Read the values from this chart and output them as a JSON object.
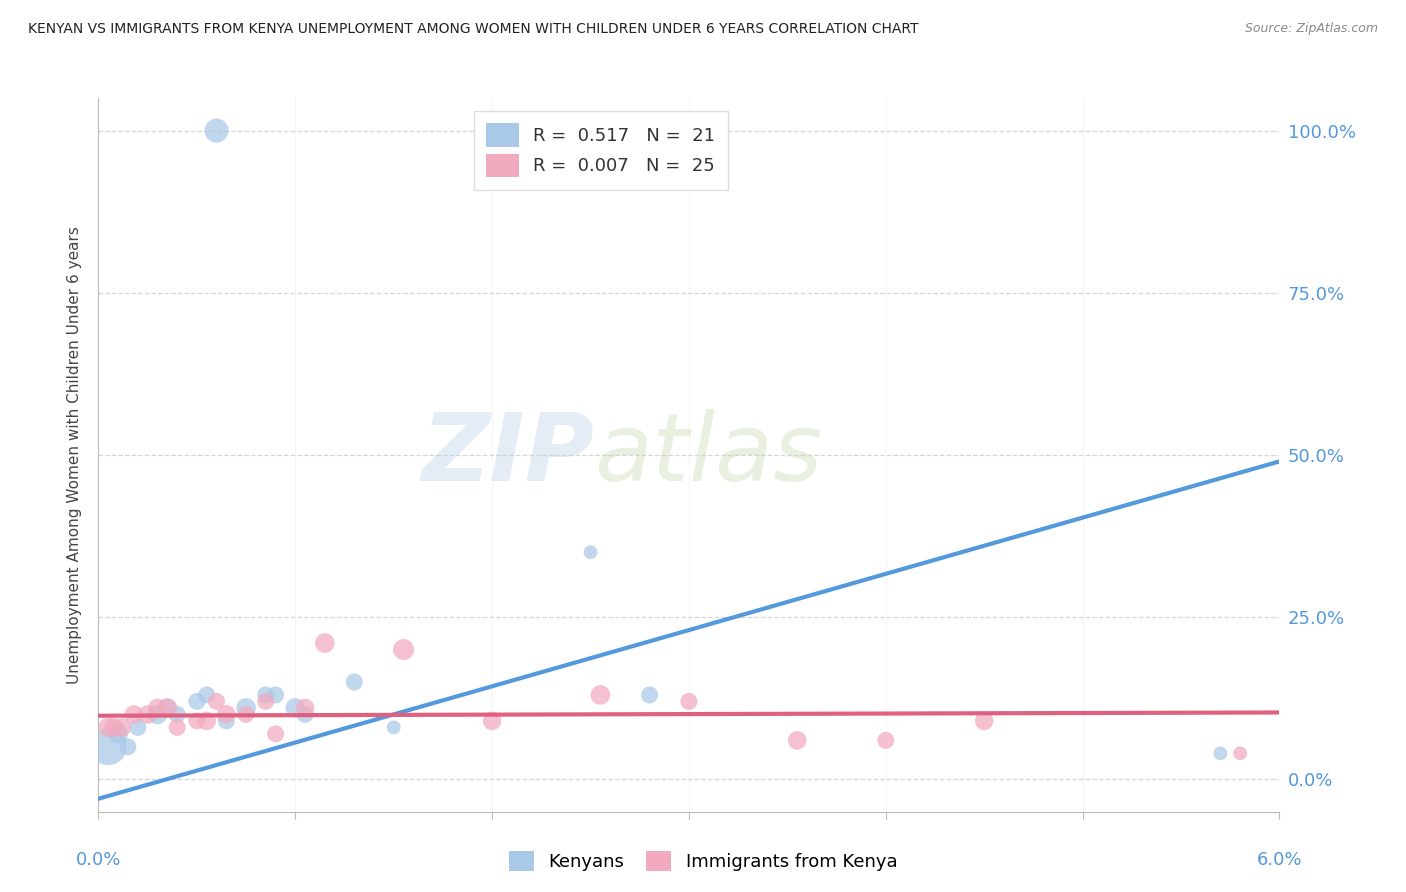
{
  "title": "KENYAN VS IMMIGRANTS FROM KENYA UNEMPLOYMENT AMONG WOMEN WITH CHILDREN UNDER 6 YEARS CORRELATION CHART",
  "source": "Source: ZipAtlas.com",
  "ylabel": "Unemployment Among Women with Children Under 6 years",
  "xlim": [
    0.0,
    6.0
  ],
  "ylim": [
    -5.0,
    105.0
  ],
  "ytick_values": [
    0,
    25,
    50,
    75,
    100
  ],
  "ytick_labels": [
    "0.0%",
    "25.0%",
    "50.0%",
    "75.0%",
    "100.0%"
  ],
  "xtick_values": [
    0,
    1,
    2,
    3,
    4,
    5,
    6
  ],
  "watermark_zip": "ZIP",
  "watermark_atlas": "atlas",
  "legend_r1": "0.517",
  "legend_n1": "21",
  "legend_r2": "0.007",
  "legend_n2": "25",
  "kenyans_color": "#aac8e8",
  "immigrants_color": "#f2aabf",
  "kenyans_line_color": "#5599dd",
  "immigrants_line_color": "#e06080",
  "kenyans_x": [
    0.05,
    0.1,
    0.15,
    0.2,
    0.3,
    0.35,
    0.4,
    0.5,
    0.55,
    0.65,
    0.75,
    0.85,
    1.0,
    1.05,
    1.3,
    1.5,
    2.5,
    2.8,
    0.6,
    5.7,
    0.9
  ],
  "kenyans_y": [
    5,
    7,
    5,
    8,
    10,
    11,
    10,
    12,
    13,
    9,
    11,
    13,
    11,
    10,
    15,
    8,
    35,
    13,
    100,
    4,
    13
  ],
  "kenyans_size": [
    700,
    200,
    150,
    150,
    200,
    180,
    150,
    150,
    150,
    150,
    200,
    150,
    200,
    150,
    150,
    100,
    100,
    150,
    300,
    100,
    150
  ],
  "immigrants_x": [
    0.05,
    0.08,
    0.12,
    0.18,
    0.25,
    0.3,
    0.35,
    0.4,
    0.5,
    0.55,
    0.6,
    0.65,
    0.75,
    0.85,
    0.9,
    1.05,
    1.15,
    1.55,
    2.0,
    2.55,
    3.0,
    3.55,
    4.0,
    4.5,
    5.8
  ],
  "immigrants_y": [
    8,
    8,
    8,
    10,
    10,
    11,
    11,
    8,
    9,
    9,
    12,
    10,
    10,
    12,
    7,
    11,
    21,
    20,
    9,
    13,
    12,
    6,
    6,
    9,
    4
  ],
  "immigrants_size": [
    200,
    180,
    180,
    180,
    180,
    180,
    200,
    150,
    150,
    180,
    150,
    180,
    150,
    150,
    150,
    180,
    200,
    230,
    180,
    200,
    150,
    180,
    150,
    180,
    100
  ],
  "blue_line_x": [
    0.0,
    6.0
  ],
  "blue_line_y": [
    -3.0,
    49.0
  ],
  "pink_line_x": [
    0.0,
    6.0
  ],
  "pink_line_y": [
    9.8,
    10.3
  ],
  "background_color": "#ffffff",
  "grid_color": "#cccccc",
  "title_color": "#222222",
  "axis_tick_color": "#5599dd",
  "legend_label1": "Kenyans",
  "legend_label2": "Immigrants from Kenya"
}
